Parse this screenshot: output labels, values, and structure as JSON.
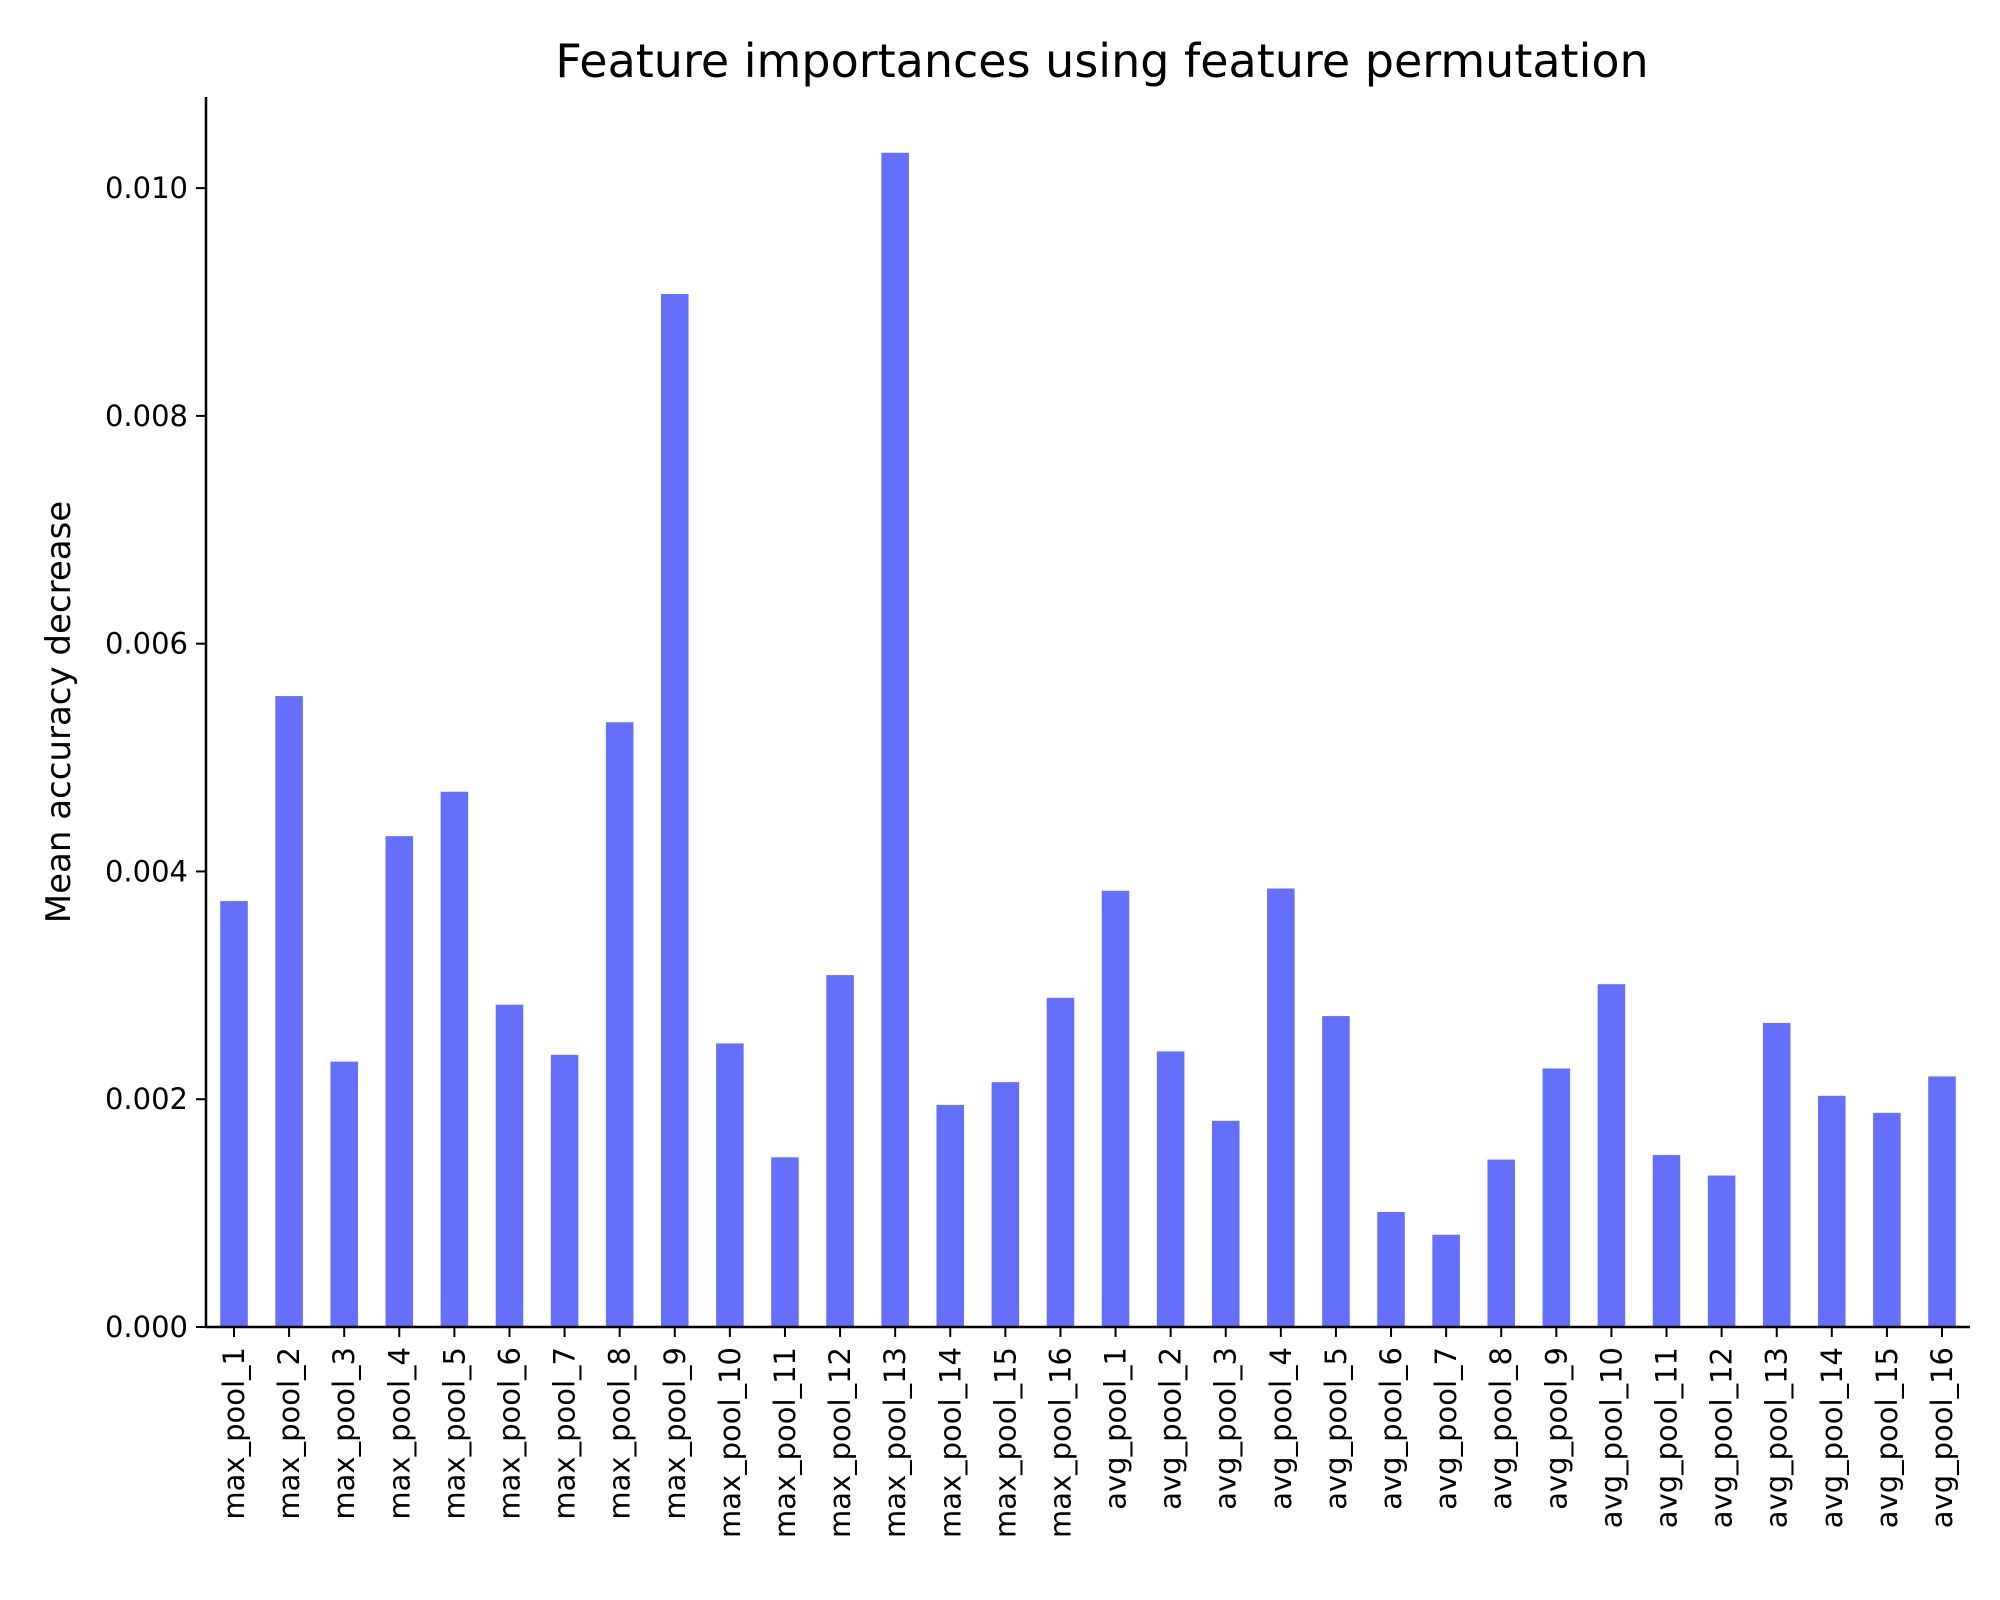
{
  "chart_data": {
    "type": "bar",
    "title": "Feature importances using feature permutation",
    "xlabel": "",
    "ylabel": "Mean accuracy decrease",
    "ylim": [
      0,
      0.0108
    ],
    "yticks": [
      "0.000",
      "0.002",
      "0.004",
      "0.006",
      "0.008",
      "0.010"
    ],
    "ytick_values": [
      0,
      0.002,
      0.004,
      0.006,
      0.008,
      0.01
    ],
    "grid": false,
    "legend": "none",
    "bar_color": "#6470fa",
    "categories": [
      "max_pool_1",
      "max_pool_2",
      "max_pool_3",
      "max_pool_4",
      "max_pool_5",
      "max_pool_6",
      "max_pool_7",
      "max_pool_8",
      "max_pool_9",
      "max_pool_10",
      "max_pool_11",
      "max_pool_12",
      "max_pool_13",
      "max_pool_14",
      "max_pool_15",
      "max_pool_16",
      "avg_pool_1",
      "avg_pool_2",
      "avg_pool_3",
      "avg_pool_4",
      "avg_pool_5",
      "avg_pool_6",
      "avg_pool_7",
      "avg_pool_8",
      "avg_pool_9",
      "avg_pool_10",
      "avg_pool_11",
      "avg_pool_12",
      "avg_pool_13",
      "avg_pool_14",
      "avg_pool_15",
      "avg_pool_16"
    ],
    "values": [
      0.00374,
      0.00554,
      0.00233,
      0.00431,
      0.0047,
      0.00283,
      0.00239,
      0.00531,
      0.00907,
      0.00249,
      0.00149,
      0.00309,
      0.01031,
      0.00195,
      0.00215,
      0.00289,
      0.00383,
      0.00242,
      0.00181,
      0.00385,
      0.00273,
      0.00101,
      0.00081,
      0.00147,
      0.00227,
      0.00301,
      0.00151,
      0.00133,
      0.00267,
      0.00203,
      0.00188,
      0.0022
    ]
  }
}
